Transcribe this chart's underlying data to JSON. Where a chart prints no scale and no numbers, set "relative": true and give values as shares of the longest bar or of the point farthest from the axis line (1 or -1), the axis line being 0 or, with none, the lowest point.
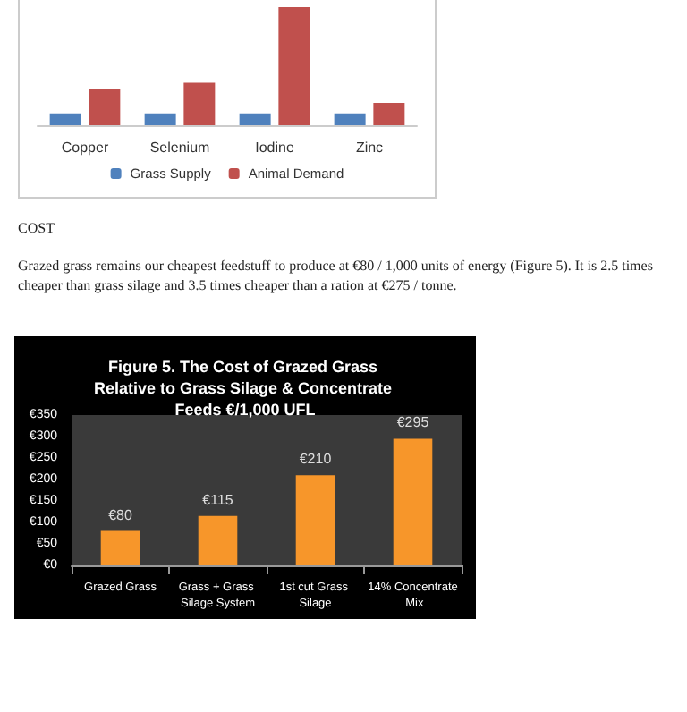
{
  "chart_data": [
    {
      "type": "bar",
      "relative": true,
      "categories": [
        "Copper",
        "Selenium",
        "Iodine",
        "Zinc"
      ],
      "legend": "bottom",
      "grid": false,
      "series": [
        {
          "name": "Grass Supply",
          "color": "#4f81bd",
          "values": [
            0.1,
            0.1,
            0.1,
            0.1
          ]
        },
        {
          "name": "Animal Demand",
          "color": "#c0504d",
          "values": [
            0.31,
            0.36,
            1,
            0.19
          ]
        }
      ]
    },
    {
      "type": "bar",
      "title": "Figure 5. The Cost of Grazed Grass Relative to Grass Silage & Concentrate Feeds €/1,000 UFL",
      "categories": [
        "Grazed Grass",
        "Grass + Grass Silage System",
        "1st cut Grass Silage",
        "14% Concentrate Mix"
      ],
      "values": [
        80,
        115,
        210,
        295
      ],
      "color": "#f7962a",
      "value_labels": [
        "€80",
        "€115",
        "€210",
        "€295"
      ],
      "ylim": [
        0,
        350
      ],
      "yticks": [
        {
          "value": 0,
          "label": "€0"
        },
        {
          "value": 50,
          "label": "€50"
        },
        {
          "value": 100,
          "label": "€100"
        },
        {
          "value": 150,
          "label": "€150"
        },
        {
          "value": 200,
          "label": "€200"
        },
        {
          "value": 250,
          "label": "€250"
        },
        {
          "value": 300,
          "label": "€300"
        },
        {
          "value": 350,
          "label": "€350"
        }
      ],
      "grid": false,
      "legend": false,
      "annotations": [
        "COST",
        "Grazed grass remains our cheapest feedstuff to produce at €80 / 1,000 units of energy (Figure 5).  It is 2.5 times cheaper than grass silage and 3.5 times cheaper than a ration at €275 / tonne."
      ]
    }
  ]
}
